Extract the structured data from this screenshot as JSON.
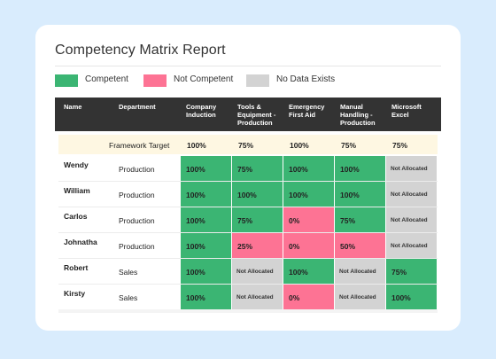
{
  "title": "Competency Matrix Report",
  "legend": [
    {
      "label": "Competent",
      "color": "#3bb573"
    },
    {
      "label": "Not Competent",
      "color": "#fd7394"
    },
    {
      "label": "No Data Exists",
      "color": "#d3d3d3"
    }
  ],
  "colors": {
    "competent": "#3bb573",
    "not_competent": "#fd7394",
    "no_data": "#d3d3d3",
    "header_bg": "#333333",
    "target_bg": "#fef7e2",
    "page_bg": "#d9ecfd"
  },
  "columns": {
    "name": "Name",
    "department": "Department",
    "skills": [
      "Company\nInduction",
      "Tools &\nEquipment -\nProduction",
      "Emergency\nFirst Aid",
      "Manual\nHandling -\nProduction",
      "Microsoft\nExcel"
    ]
  },
  "framework_target": {
    "label": "Framework Target",
    "values": [
      "100%",
      "75%",
      "100%",
      "75%",
      "75%"
    ]
  },
  "rows": [
    {
      "name": "Wendy",
      "department": "Production",
      "cells": [
        {
          "value": "100%",
          "status": "competent"
        },
        {
          "value": "75%",
          "status": "competent"
        },
        {
          "value": "100%",
          "status": "competent"
        },
        {
          "value": "100%",
          "status": "competent"
        },
        {
          "value": "Not Allocated",
          "status": "no_data"
        }
      ]
    },
    {
      "name": "William",
      "department": "Production",
      "cells": [
        {
          "value": "100%",
          "status": "competent"
        },
        {
          "value": "100%",
          "status": "competent"
        },
        {
          "value": "100%",
          "status": "competent"
        },
        {
          "value": "100%",
          "status": "competent"
        },
        {
          "value": "Not Allocated",
          "status": "no_data"
        }
      ]
    },
    {
      "name": "Carlos",
      "department": "Production",
      "cells": [
        {
          "value": "100%",
          "status": "competent"
        },
        {
          "value": "75%",
          "status": "competent"
        },
        {
          "value": "0%",
          "status": "not_competent"
        },
        {
          "value": "75%",
          "status": "competent"
        },
        {
          "value": "Not Allocated",
          "status": "no_data"
        }
      ]
    },
    {
      "name": "Johnatha",
      "department": "Production",
      "cells": [
        {
          "value": "100%",
          "status": "competent"
        },
        {
          "value": "25%",
          "status": "not_competent"
        },
        {
          "value": "0%",
          "status": "not_competent"
        },
        {
          "value": "50%",
          "status": "not_competent"
        },
        {
          "value": "Not Allocated",
          "status": "no_data"
        }
      ]
    },
    {
      "name": "Robert",
      "department": "Sales",
      "cells": [
        {
          "value": "100%",
          "status": "competent"
        },
        {
          "value": "Not Allocated",
          "status": "no_data"
        },
        {
          "value": "100%",
          "status": "competent"
        },
        {
          "value": "Not Allocated",
          "status": "no_data"
        },
        {
          "value": "75%",
          "status": "competent"
        }
      ]
    },
    {
      "name": "Kirsty",
      "department": "Sales",
      "cells": [
        {
          "value": "100%",
          "status": "competent"
        },
        {
          "value": "Not Allocated",
          "status": "no_data"
        },
        {
          "value": "0%",
          "status": "not_competent"
        },
        {
          "value": "Not Allocated",
          "status": "no_data"
        },
        {
          "value": "100%",
          "status": "competent"
        }
      ]
    }
  ]
}
